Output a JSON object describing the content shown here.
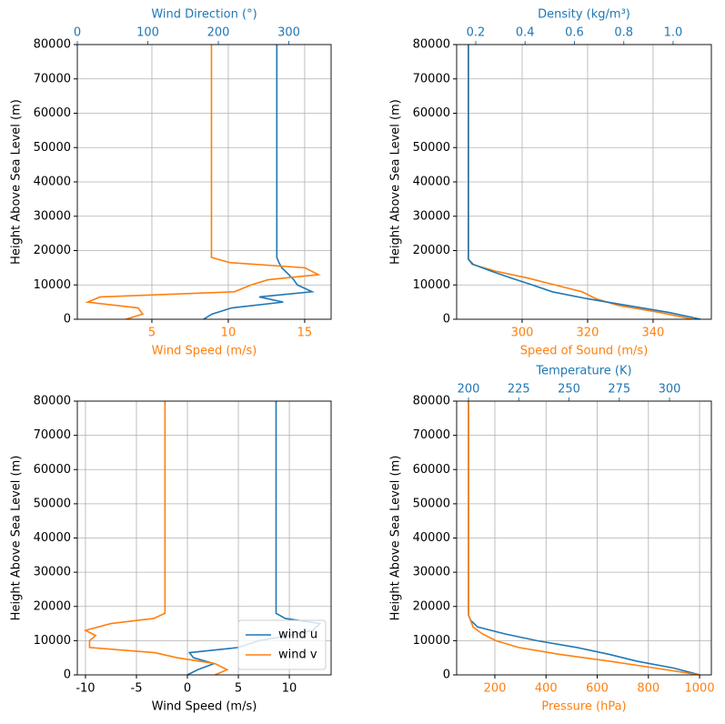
{
  "chart_data": [
    {
      "type": "line",
      "ylabel": "Height Above Sea Level (m)",
      "ylim": [
        0,
        80000
      ],
      "yticks": [
        0,
        10000,
        20000,
        30000,
        40000,
        50000,
        60000,
        70000,
        80000
      ],
      "grid": true,
      "xlabel": "Wind Speed (m/s)",
      "xcolor": "#ff7f0e",
      "xlim": [
        0.12,
        16.73
      ],
      "xticks": [
        5,
        10,
        15
      ],
      "x2label": "Wind Direction (°)",
      "x2color": "#1f77b4",
      "x2lim": [
        0,
        360
      ],
      "x2ticks": [
        0,
        100,
        200,
        300
      ],
      "series": [
        {
          "color": "#1f77b4",
          "axis": "x2",
          "values": [
            179,
            191,
            219,
            292,
            258,
            333,
            312,
            307,
            300,
            290,
            286,
            283,
            283
          ],
          "heights": [
            0,
            1500,
            3300,
            5000,
            6500,
            8000,
            10000,
            11500,
            13000,
            15000,
            16500,
            18000,
            80000
          ]
        },
        {
          "color": "#ff7f0e",
          "values": [
            3.3,
            4.4,
            4.1,
            0.8,
            1.6,
            10.4,
            11.5,
            12.6,
            15.9,
            15.0,
            10.1,
            8.9,
            8.9
          ],
          "heights": [
            0,
            1500,
            3300,
            5000,
            6500,
            8000,
            10000,
            11500,
            13000,
            15000,
            16500,
            18000,
            80000
          ]
        }
      ]
    },
    {
      "type": "line",
      "ylabel": "Height Above Sea Level (m)",
      "ylim": [
        0,
        80000
      ],
      "yticks": [
        0,
        10000,
        20000,
        30000,
        40000,
        50000,
        60000,
        70000,
        80000
      ],
      "grid": true,
      "xlabel": "Speed of Sound (m/s)",
      "xcolor": "#ff7f0e",
      "xlim": [
        280,
        357.8
      ],
      "xticks": [
        300,
        320,
        340
      ],
      "x2label": "Density (kg/m³)",
      "x2color": "#1f77b4",
      "x2lim": [
        0.1226,
        1.155
      ],
      "x2ticks": [
        0.2,
        0.4,
        0.6,
        0.8,
        {
          "value": 1,
          "label": "1.0"
        }
      ],
      "series": [
        {
          "color": "#ff7f0e",
          "values": [
            352.2,
            341.9,
            329.4,
            322.5,
            318.3,
            310,
            301.7,
            291.9,
            284.7,
            283.6,
            283.6
          ],
          "heights": [
            0,
            2000,
            4000,
            6000,
            8000,
            10000,
            12000,
            14000,
            16000,
            17500,
            80000
          ]
        },
        {
          "color": "#1f77b4",
          "axis": "x2",
          "values": [
            1.111,
            0.982,
            0.816,
            0.65,
            0.51,
            0.429,
            0.344,
            0.263,
            0.189,
            0.17,
            0.17
          ],
          "heights": [
            0,
            2000,
            4000,
            6000,
            8000,
            10000,
            12000,
            14000,
            16000,
            17500,
            80000
          ]
        }
      ]
    },
    {
      "type": "line",
      "ylabel": "Height Above Sea Level (m)",
      "ylim": [
        0,
        80000
      ],
      "yticks": [
        0,
        10000,
        20000,
        30000,
        40000,
        50000,
        60000,
        70000,
        80000
      ],
      "grid": true,
      "xlabel": "Wind Speed (m/s)",
      "xcolor": "#000000",
      "xlim": [
        -10.8,
        14.1
      ],
      "xticks": [
        -10,
        -5,
        0,
        5,
        10
      ],
      "legend": "lower right",
      "series": [
        {
          "name": "wind u",
          "color": "#1f77b4",
          "values": [
            0.0,
            1.0,
            2.6,
            0.6,
            0.2,
            5.0,
            7.0,
            10.0,
            12.3,
            13.0,
            9.6,
            8.7,
            8.7
          ],
          "heights": [
            0,
            1500,
            3300,
            5000,
            6500,
            8000,
            10000,
            11500,
            13000,
            15000,
            16500,
            18000,
            80000
          ]
        },
        {
          "name": "wind v",
          "color": "#ff7f0e",
          "values": [
            2.7,
            3.9,
            2.7,
            -1.0,
            -3.2,
            -9.6,
            -9.6,
            -9.0,
            -10.0,
            -7.5,
            -3.3,
            -2.2,
            -2.2
          ],
          "heights": [
            0,
            1500,
            3300,
            5000,
            6500,
            8000,
            10000,
            11500,
            13000,
            15000,
            16500,
            18000,
            80000
          ]
        }
      ]
    },
    {
      "type": "line",
      "ylabel": "Height Above Sea Level (m)",
      "ylim": [
        0,
        80000
      ],
      "yticks": [
        0,
        10000,
        20000,
        30000,
        40000,
        50000,
        60000,
        70000,
        80000
      ],
      "grid": true,
      "xlabel": "Pressure (hPa)",
      "xcolor": "#ff7f0e",
      "xlim": [
        50.8,
        1046
      ],
      "xticks": [
        200,
        400,
        600,
        800,
        1000
      ],
      "x2label": "Temperature (K)",
      "x2color": "#1f77b4",
      "x2lim": [
        194.1,
        320.8
      ],
      "x2ticks": [
        200,
        225,
        250,
        275,
        300
      ],
      "series": [
        {
          "color": "#1f77b4",
          "axis": "x2",
          "values": [
            315,
            302,
            283.7,
            270,
            254,
            234,
            218,
            204.5,
            201,
            200,
            200
          ],
          "heights": [
            0,
            2000,
            4000,
            6000,
            8000,
            10000,
            12000,
            14000,
            16000,
            17500,
            80000
          ]
        },
        {
          "color": "#ff7f0e",
          "values": [
            1000,
            826,
            648,
            453,
            293,
            204,
            151,
            115,
            105,
            97.5,
            97.5
          ],
          "heights": [
            0,
            2000,
            4000,
            6000,
            8000,
            10000,
            12000,
            14000,
            16000,
            17500,
            80000
          ]
        }
      ]
    }
  ]
}
